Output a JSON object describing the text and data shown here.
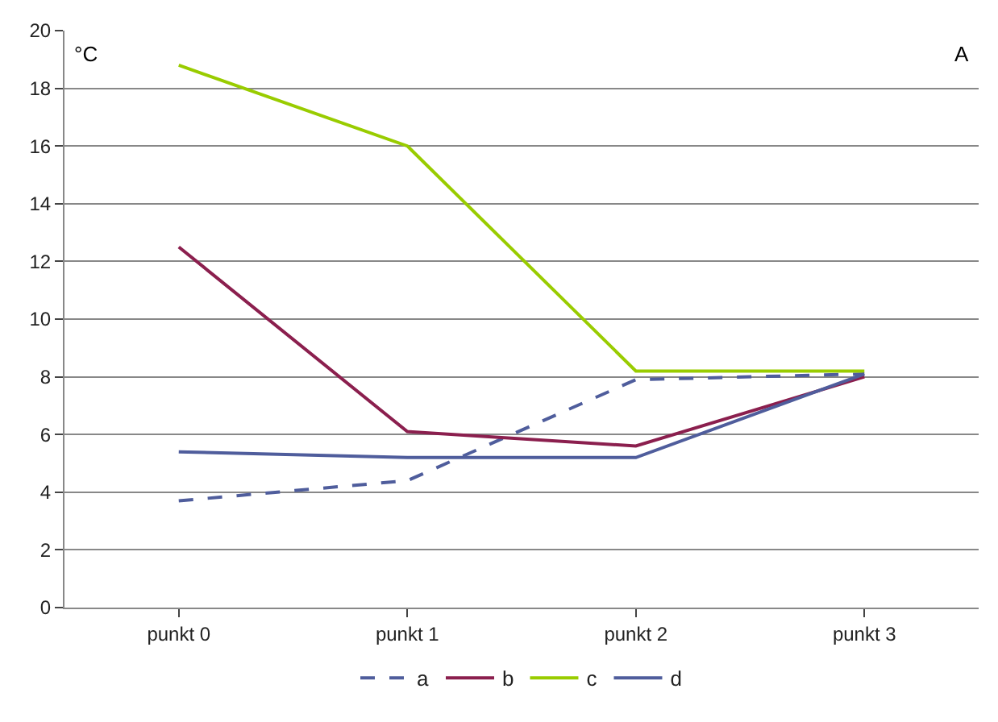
{
  "chart_data": {
    "type": "line",
    "categories": [
      "punkt 0",
      "punkt 1",
      "punkt 2",
      "punkt 3"
    ],
    "series": [
      {
        "name": "a",
        "color": "#4f5d9c",
        "values": [
          3.7,
          4.4,
          7.9,
          8.1
        ],
        "line_style": "dashed"
      },
      {
        "name": "b",
        "color": "#8b1f4e",
        "values": [
          12.5,
          6.1,
          5.6,
          8.0
        ]
      },
      {
        "name": "c",
        "color": "#99cc00",
        "values": [
          18.8,
          16.0,
          8.2,
          8.2
        ]
      },
      {
        "name": "d",
        "color": "#4f5d9c",
        "values": [
          5.4,
          5.2,
          5.2,
          8.1
        ]
      }
    ],
    "ylim": [
      0,
      20
    ],
    "yticks": [
      0,
      2,
      4,
      6,
      8,
      10,
      12,
      14,
      16,
      18,
      20
    ],
    "grid": "y",
    "legend": "bottom",
    "marker": "none",
    "line_style": "solid",
    "annotations": [
      "°C",
      "A"
    ]
  }
}
